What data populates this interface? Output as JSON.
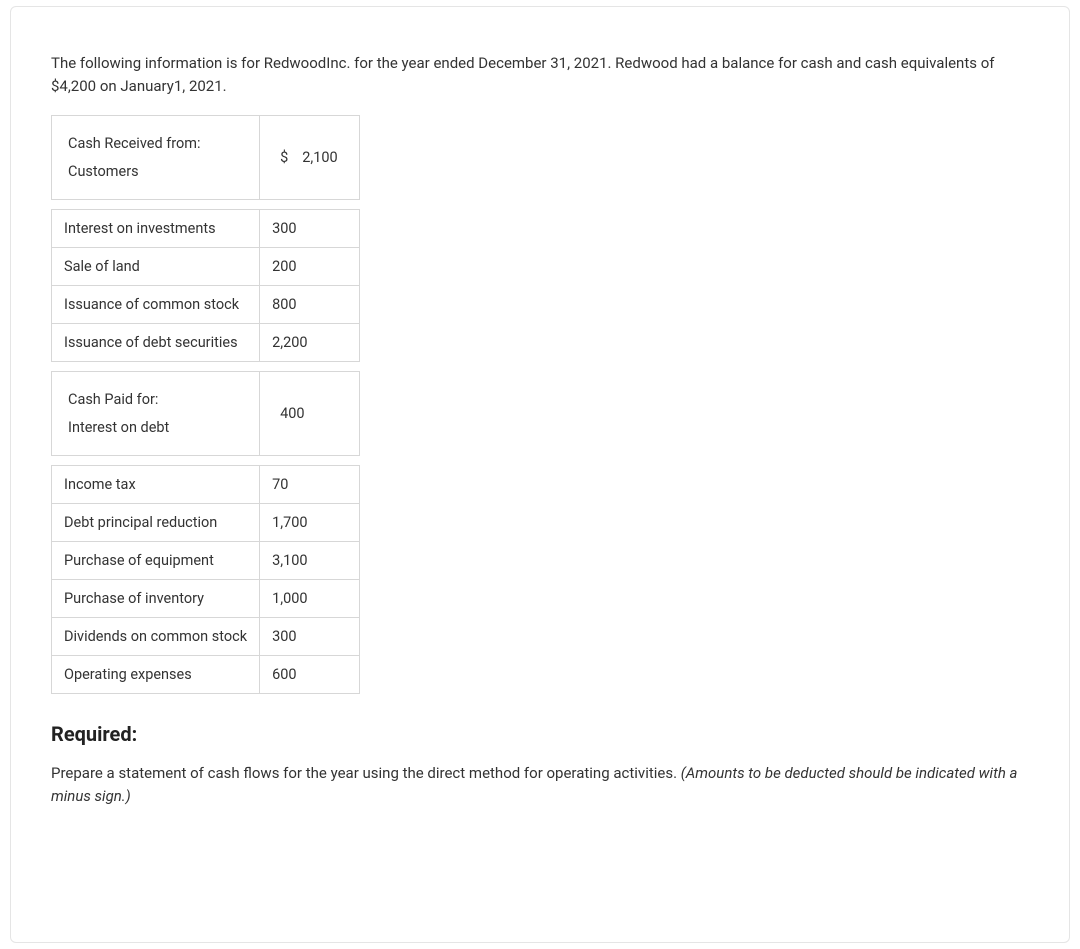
{
  "intro": "The following information is for RedwoodInc. for the year ended December 31, 2021. Redwood had a balance for cash and cash equivalents of $4,200 on January1, 2021.",
  "table": {
    "section1": {
      "label_line1": "Cash Received from:",
      "label_line2": "Customers",
      "currency": "$",
      "value": "2,100"
    },
    "rows1": [
      {
        "label": "Interest on investments",
        "value": "300"
      },
      {
        "label": "Sale of land",
        "value": "200"
      },
      {
        "label": "Issuance of common stock",
        "value": "800"
      },
      {
        "label": "Issuance of debt securities",
        "value": "2,200"
      }
    ],
    "section2": {
      "label_line1": "Cash Paid for:",
      "label_line2": "Interest on debt",
      "value": "400"
    },
    "rows2": [
      {
        "label": "Income tax",
        "value": "70"
      },
      {
        "label": "Debt principal reduction",
        "value": "1,700"
      },
      {
        "label": "Purchase of equipment",
        "value": "3,100"
      },
      {
        "label": "Purchase of inventory",
        "value": "1,000"
      },
      {
        "label": "Dividends on common stock",
        "value": "300"
      },
      {
        "label": "Operating expenses",
        "value": "600"
      }
    ]
  },
  "required_heading": "Required:",
  "required_text_plain": "Prepare a statement of cash flows for the year using the direct method for operating activities. ",
  "required_text_italic": "(Amounts to be deducted should be indicated with a minus sign.)"
}
